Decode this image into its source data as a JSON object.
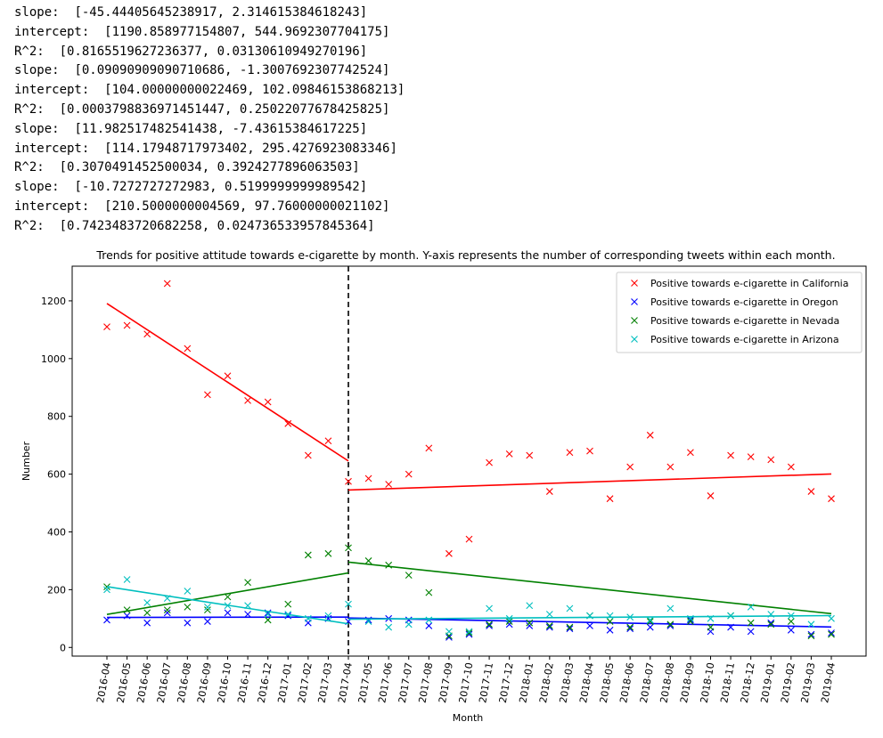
{
  "console_output": [
    {
      "label": "slope:  ",
      "value": "[-45.44405645238917, 2.314615384618243]"
    },
    {
      "label": "intercept:  ",
      "value": "[1190.858977154807, 544.9692307704175]"
    },
    {
      "label": "R^2:  ",
      "value": "[0.8165519627236377, 0.03130610949270196]"
    },
    {
      "label": "slope:  ",
      "value": "[0.09090909090710686, -1.3007692307742524]"
    },
    {
      "label": "intercept:  ",
      "value": "[104.00000000022469, 102.09846153868213]"
    },
    {
      "label": "R^2:  ",
      "value": "[0.0003798836971451447, 0.25022077678425825]"
    },
    {
      "label": "slope:  ",
      "value": "[11.982517482541438, -7.43615384617225]"
    },
    {
      "label": "intercept:  ",
      "value": "[114.17948717973402, 295.4276923083346]"
    },
    {
      "label": "R^2:  ",
      "value": "[0.3070491452500034, 0.3924277896063503]"
    },
    {
      "label": "slope:  ",
      "value": "[-10.7272727272983, 0.5199999999989542]"
    },
    {
      "label": "intercept:  ",
      "value": "[210.5000000004569, 97.76000000021102]"
    },
    {
      "label": "R^2:  ",
      "value": "[0.7423483720682258, 0.024736533957845364]"
    }
  ],
  "chart_data": {
    "type": "scatter",
    "title": "Trends for positive attitude towards e-cigarette by month. Y-axis represents the number of corresponding tweets within each month.",
    "xlabel": "Month",
    "ylabel": "Number",
    "ylim": [
      -30,
      1320
    ],
    "yticks": [
      0,
      200,
      400,
      600,
      800,
      1000,
      1200
    ],
    "grid": false,
    "legend_position": "top-right",
    "breakpoint": "2017-04",
    "x": [
      "2016-04",
      "2016-05",
      "2016-06",
      "2016-07",
      "2016-08",
      "2016-09",
      "2016-10",
      "2016-11",
      "2016-12",
      "2017-01",
      "2017-02",
      "2017-03",
      "2017-04",
      "2017-05",
      "2017-06",
      "2017-07",
      "2017-08",
      "2017-09",
      "2017-10",
      "2017-11",
      "2017-12",
      "2018-01",
      "2018-02",
      "2018-03",
      "2018-04",
      "2018-05",
      "2018-06",
      "2018-07",
      "2018-08",
      "2018-09",
      "2018-10",
      "2018-11",
      "2018-12",
      "2019-01",
      "2019-02",
      "2019-03",
      "2019-04"
    ],
    "series": [
      {
        "name": "Positive towards e-cigarette in California",
        "color": "#ff0000",
        "values": [
          1110,
          1115,
          1085,
          1260,
          1035,
          875,
          940,
          855,
          850,
          775,
          665,
          715,
          575,
          585,
          565,
          600,
          690,
          325,
          375,
          640,
          670,
          665,
          540,
          675,
          680,
          515,
          625,
          735,
          625,
          675,
          525,
          665,
          660,
          650,
          625,
          540,
          515
        ],
        "fit": [
          {
            "from": 0,
            "to": 12,
            "slope": -45.44405645238917,
            "intercept": 1190.858977154807
          },
          {
            "from": 12,
            "to": 36,
            "slope": 2.314615384618243,
            "intercept": 544.9692307704175
          }
        ]
      },
      {
        "name": "Positive towards e-cigarette in Oregon",
        "color": "#0000ff",
        "values": [
          95,
          110,
          85,
          120,
          85,
          90,
          120,
          115,
          120,
          110,
          85,
          100,
          90,
          95,
          100,
          95,
          75,
          35,
          45,
          75,
          80,
          75,
          70,
          65,
          75,
          60,
          65,
          70,
          75,
          95,
          55,
          70,
          55,
          85,
          60,
          45,
          50
        ],
        "fit": [
          {
            "from": 0,
            "to": 12,
            "slope": 0.09090909090710686,
            "intercept": 104.00000000022469
          },
          {
            "from": 12,
            "to": 36,
            "slope": -1.3007692307742524,
            "intercept": 102.09846153868213
          }
        ]
      },
      {
        "name": "Positive towards e-cigarette in Nevada",
        "color": "#008000",
        "values": [
          210,
          130,
          120,
          130,
          140,
          130,
          175,
          225,
          95,
          150,
          320,
          325,
          345,
          300,
          285,
          250,
          190,
          40,
          50,
          80,
          90,
          85,
          75,
          70,
          110,
          90,
          70,
          90,
          80,
          90,
          70,
          110,
          85,
          80,
          90,
          40,
          45
        ],
        "fit": [
          {
            "from": 0,
            "to": 12,
            "slope": 11.982517482541438,
            "intercept": 114.17948717973402
          },
          {
            "from": 12,
            "to": 36,
            "slope": -7.43615384617225,
            "intercept": 295.4276923083346
          }
        ]
      },
      {
        "name": "Positive towards e-cigarette in Arizona",
        "color": "#00bfbf",
        "values": [
          200,
          235,
          155,
          170,
          195,
          140,
          145,
          145,
          115,
          115,
          100,
          110,
          150,
          90,
          70,
          80,
          95,
          55,
          55,
          135,
          100,
          145,
          115,
          135,
          110,
          110,
          105,
          95,
          135,
          100,
          100,
          110,
          140,
          115,
          110,
          80,
          100
        ],
        "fit": [
          {
            "from": 0,
            "to": 12,
            "slope": -10.7272727272983,
            "intercept": 210.5000000004569
          },
          {
            "from": 12,
            "to": 36,
            "slope": 0.5199999999989542,
            "intercept": 97.76000000021102
          }
        ]
      }
    ]
  }
}
